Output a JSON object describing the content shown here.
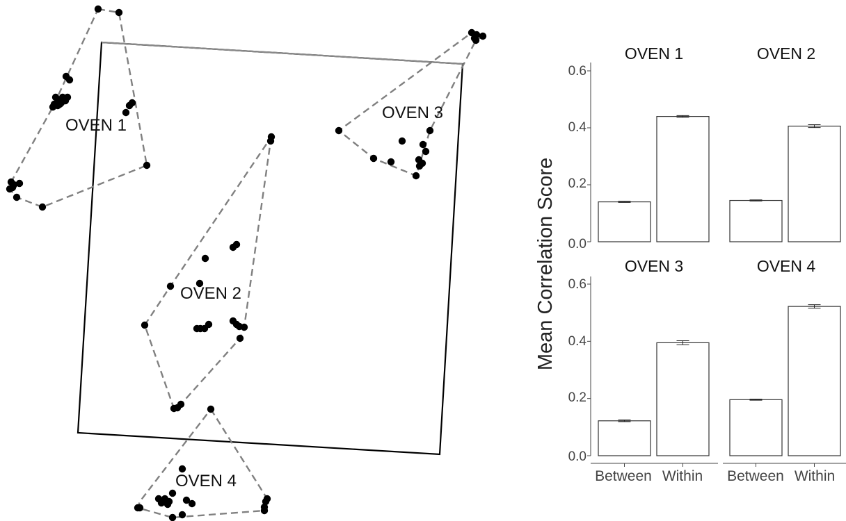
{
  "chart_data": [
    {
      "type": "scatter",
      "title": "",
      "xlabel": "",
      "ylabel": "",
      "grid": false,
      "legend": "none",
      "groups": [
        {
          "name": "OVEN 1",
          "hull": [
            [
              141,
              13
            ],
            [
              171,
              18
            ],
            [
              211,
              238
            ],
            [
              61,
              298
            ],
            [
              24,
              284
            ],
            [
              14,
              272
            ],
            [
              16,
              262
            ],
            [
              76,
              154
            ]
          ],
          "points": [
            [
              141,
              13
            ],
            [
              171,
              18
            ],
            [
              95,
              110
            ],
            [
              100,
              115
            ],
            [
              80,
              140
            ],
            [
              84,
              144
            ],
            [
              90,
              140
            ],
            [
              97,
              140
            ],
            [
              78,
              150
            ],
            [
              83,
              152
            ],
            [
              88,
              148
            ],
            [
              94,
              145
            ],
            [
              76,
              154
            ],
            [
              86,
              150
            ],
            [
              186,
              152
            ],
            [
              190,
              148
            ],
            [
              181,
              162
            ],
            [
              211,
              238
            ],
            [
              16,
              262
            ],
            [
              20,
              266
            ],
            [
              28,
              264
            ],
            [
              14,
              272
            ],
            [
              18,
              270
            ],
            [
              24,
              284
            ],
            [
              61,
              298
            ]
          ]
        },
        {
          "name": "OVEN 2",
          "hull": [
            [
              390,
              197
            ],
            [
              389,
              203
            ],
            [
              351,
              471
            ],
            [
              345,
              487
            ],
            [
              260,
              582
            ],
            [
              250,
              588
            ],
            [
              208,
              468
            ],
            [
              245,
              412
            ]
          ],
          "points": [
            [
              390,
              197
            ],
            [
              389,
              203
            ],
            [
              340,
              352
            ],
            [
              335,
              356
            ],
            [
              295,
              372
            ],
            [
              287,
              408
            ],
            [
              245,
              412
            ],
            [
              208,
              468
            ],
            [
              283,
              473
            ],
            [
              288,
              473
            ],
            [
              294,
              473
            ],
            [
              300,
              467
            ],
            [
              335,
              462
            ],
            [
              340,
              467
            ],
            [
              344,
              470
            ],
            [
              351,
              471
            ],
            [
              345,
              487
            ],
            [
              260,
              582
            ],
            [
              255,
              587
            ],
            [
              250,
              588
            ]
          ]
        },
        {
          "name": "OVEN 3",
          "hull": [
            [
              678,
              47
            ],
            [
              694,
              52
            ],
            [
              684,
              58
            ],
            [
              618,
              188
            ],
            [
              598,
              253
            ],
            [
              537,
              228
            ],
            [
              487,
              188
            ]
          ],
          "points": [
            [
              678,
              47
            ],
            [
              685,
              50
            ],
            [
              694,
              52
            ],
            [
              682,
              55
            ],
            [
              684,
              58
            ],
            [
              618,
              188
            ],
            [
              578,
              203
            ],
            [
              608,
              208
            ],
            [
              612,
              218
            ],
            [
              602,
              230
            ],
            [
              607,
              235
            ],
            [
              603,
              239
            ],
            [
              537,
              228
            ],
            [
              562,
              233
            ],
            [
              598,
              253
            ],
            [
              487,
              188
            ]
          ]
        },
        {
          "name": "OVEN 4",
          "hull": [
            [
              303,
              589
            ],
            [
              384,
              718
            ],
            [
              380,
              735
            ],
            [
              248,
              745
            ],
            [
              198,
              731
            ],
            [
              201,
              722
            ]
          ],
          "points": [
            [
              303,
              589
            ],
            [
              262,
              675
            ],
            [
              248,
              710
            ],
            [
              228,
              718
            ],
            [
              237,
              718
            ],
            [
              243,
              722
            ],
            [
              232,
              724
            ],
            [
              241,
              726
            ],
            [
              268,
              720
            ],
            [
              276,
              725
            ],
            [
              384,
              718
            ],
            [
              382,
              722
            ],
            [
              380,
              730
            ],
            [
              380,
              735
            ],
            [
              201,
              731
            ],
            [
              198,
              731
            ],
            [
              248,
              745
            ],
            [
              262,
              741
            ]
          ]
        }
      ],
      "frames": [
        {
          "color": "#000000",
          "corners": [
            [
              146,
              61
            ],
            [
              665,
              92
            ],
            [
              632,
              654
            ],
            [
              112,
              623
            ]
          ]
        },
        {
          "color": "#8a8a8a",
          "corners": [
            [
              146,
              61
            ],
            [
              665,
              92
            ]
          ]
        }
      ],
      "hull_color": "#808080",
      "point_color": "#000000"
    },
    {
      "type": "bar",
      "ylabel": "Mean Correlation Score",
      "ylim": [
        0,
        0.62
      ],
      "yticks": [
        "0.0",
        "0.2",
        "0.4",
        "0.6"
      ],
      "categories": [
        "Between",
        "Within"
      ],
      "bar_fill": "#ffffff",
      "bar_stroke": "#333333",
      "panels": [
        {
          "name": "OVEN 1",
          "values": [
            0.14,
            0.44
          ],
          "errors": [
            0.002,
            0.003
          ]
        },
        {
          "name": "OVEN 2",
          "values": [
            0.145,
            0.406
          ],
          "errors": [
            0.002,
            0.005
          ]
        },
        {
          "name": "OVEN 3",
          "values": [
            0.122,
            0.395
          ],
          "errors": [
            0.003,
            0.007
          ]
        },
        {
          "name": "OVEN 4",
          "values": [
            0.196,
            0.522
          ],
          "errors": [
            0.002,
            0.006
          ]
        }
      ]
    }
  ]
}
